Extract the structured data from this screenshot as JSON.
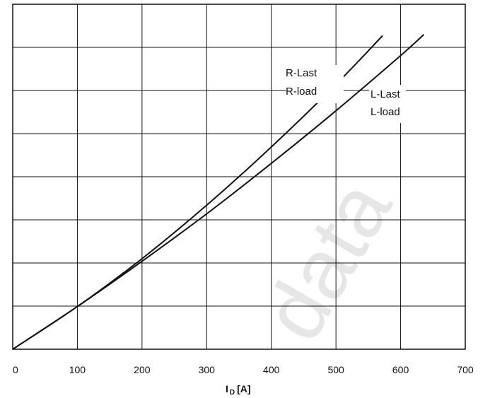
{
  "chart_data": {
    "type": "line",
    "title": "",
    "xlabel": {
      "main": "I",
      "sub": "D",
      "unit": "[A]"
    },
    "ylabel": "",
    "xlim": [
      0,
      700
    ],
    "ylim": [
      0,
      8
    ],
    "x_ticks": [
      0,
      100,
      200,
      300,
      400,
      500,
      600,
      700
    ],
    "y_ticks": [
      0,
      1,
      2,
      3,
      4,
      5,
      6,
      7,
      8
    ],
    "grid": true,
    "legend": "none",
    "series": [
      {
        "name_lines": [
          "R-Last",
          "R-load"
        ],
        "x": [
          0,
          100,
          200,
          300,
          400,
          500,
          572
        ],
        "y": [
          0,
          0.99,
          2.1,
          3.34,
          4.69,
          6.14,
          7.27
        ]
      },
      {
        "name_lines": [
          "L-Last",
          "L-load"
        ],
        "x": [
          0,
          100,
          200,
          300,
          400,
          500,
          600,
          636
        ],
        "y": [
          0,
          0.99,
          2.04,
          3.14,
          4.31,
          5.53,
          6.81,
          7.3
        ]
      }
    ],
    "watermark": "data",
    "colors": {
      "line": "#111111",
      "grid": "#111111",
      "watermark": "#e6e6e6"
    }
  }
}
